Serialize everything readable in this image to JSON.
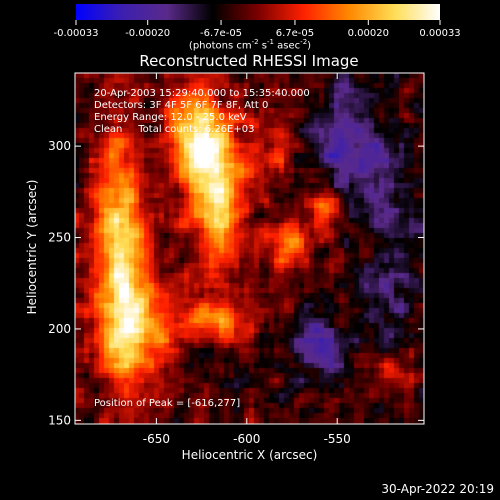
{
  "colorbar": {
    "tick_labels": [
      "-0.00033",
      "-0.00020",
      "-6.7e-05",
      "6.7e-05",
      "0.00020",
      "0.00033"
    ],
    "tick_values": [
      -0.00033,
      -0.0002,
      -6.7e-05,
      6.7e-05,
      0.0002,
      0.00033
    ],
    "range": [
      -0.00033,
      0.00033
    ],
    "unit_label": "(photons cm",
    "unit_exp1": "-2",
    "unit_mid": " s",
    "unit_exp2": "-1",
    "unit_mid2": " asec",
    "unit_exp3": "-2",
    "unit_end": ")",
    "colors": [
      "#0000ff",
      "#3b1fb0",
      "#5a2a8a",
      "#000000",
      "#7a0000",
      "#ff2000",
      "#ff8800",
      "#ffdd55",
      "#ffffff"
    ]
  },
  "chart_data": {
    "type": "heatmap",
    "title": "Reconstructed RHESSI Image",
    "xlabel": "Heliocentric X (arcsec)",
    "ylabel": "Heliocentric Y (arcsec)",
    "xlim": [
      -695,
      -502
    ],
    "ylim": [
      148,
      340
    ],
    "x_ticks": [
      -650,
      -600,
      -550
    ],
    "x_tick_labels": [
      "-650",
      "-600",
      "-550"
    ],
    "y_ticks": [
      150,
      200,
      250,
      300
    ],
    "y_tick_labels": [
      "150",
      "200",
      "250",
      "300"
    ],
    "info_lines": [
      "20-Apr-2003 15:29:40.000 to 15:35:40.000",
      "Detectors: 3F 4F 5F 6F 7F 8F, Att 0",
      "Energy Range: 12.0 - 25.0 keV",
      "Clean     Total counts: 6.26E+03"
    ],
    "peak_label": "Position of Peak = [-616,277]",
    "peak": [
      -616,
      277
    ],
    "sources": [
      {
        "x": -616,
        "y": 277,
        "sx": 10,
        "sy": 28,
        "amp": 1.0
      },
      {
        "x": -630,
        "y": 305,
        "sx": 9,
        "sy": 18,
        "amp": 0.85
      },
      {
        "x": -670,
        "y": 245,
        "sx": 10,
        "sy": 45,
        "amp": 0.85
      },
      {
        "x": -660,
        "y": 200,
        "sx": 14,
        "sy": 20,
        "amp": 0.65
      },
      {
        "x": -615,
        "y": 205,
        "sx": 14,
        "sy": 10,
        "amp": 0.5
      },
      {
        "x": -577,
        "y": 248,
        "sx": 8,
        "sy": 9,
        "amp": 0.6
      },
      {
        "x": -555,
        "y": 265,
        "sx": 8,
        "sy": 8,
        "amp": 0.55
      },
      {
        "x": -585,
        "y": 300,
        "sx": 10,
        "sy": 14,
        "amp": 0.35
      },
      {
        "x": -520,
        "y": 175,
        "sx": 10,
        "sy": 10,
        "amp": 0.3
      },
      {
        "x": -560,
        "y": 190,
        "sx": 10,
        "sy": 12,
        "amp": -0.55
      },
      {
        "x": -545,
        "y": 300,
        "sx": 15,
        "sy": 22,
        "amp": -0.5
      },
      {
        "x": -520,
        "y": 240,
        "sx": 10,
        "sy": 40,
        "amp": -0.35
      }
    ]
  },
  "footer": {
    "timestamp": "30-Apr-2022 20:19"
  }
}
